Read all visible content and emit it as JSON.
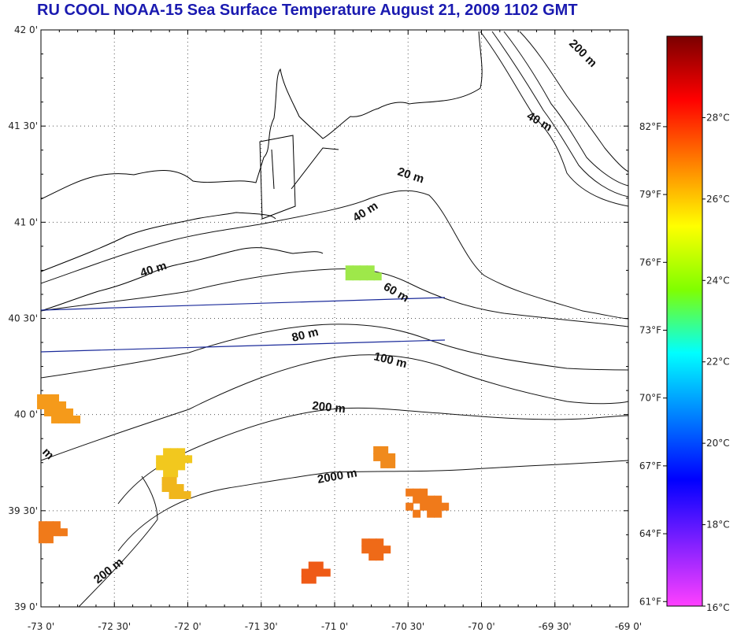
{
  "title": "RU COOL  NOAA-15 Sea Surface Temperature August 21, 2009 1102 GMT",
  "map": {
    "lat_range": [
      39.0,
      42.0
    ],
    "lon_range": [
      -73.0,
      -69.0
    ],
    "lat_ticks": [
      "39 0'",
      "39 30'",
      "40 0'",
      "40 30'",
      "41 0'",
      "41 30'",
      "42 0'"
    ],
    "lon_ticks": [
      "-73 0'",
      "-72 30'",
      "-72 0'",
      "-71 30'",
      "-71 0'",
      "-70 30'",
      "-70 0'",
      "-69 30'",
      "-69 0'"
    ],
    "grid": "dotted",
    "depth_contour_labels": [
      "200 m",
      "40 m",
      "20 m",
      "40 m",
      "40 m",
      "60 m",
      "80 m",
      "100 m",
      "200 m",
      "2000 m",
      "200 m",
      "m"
    ],
    "land_color": "#ffffff",
    "coastline_color": "#000000",
    "transect_color": "#1a2a9a"
  },
  "colorbar": {
    "range_c": [
      16,
      30
    ],
    "celsius_labels": [
      "28°C",
      "26°C",
      "24°C",
      "22°C",
      "20°C",
      "18°C",
      "16°C"
    ],
    "fahrenheit_labels": [
      "82°F",
      "79°F",
      "76°F",
      "73°F",
      "70°F",
      "67°F",
      "64°F",
      "61°F"
    ],
    "colors": [
      "#7a0000",
      "#ff0000",
      "#ff8000",
      "#ffff00",
      "#80ff00",
      "#00ffff",
      "#0080ff",
      "#0000ff",
      "#8020ff",
      "#ff40ff"
    ]
  },
  "sst_patches": [
    {
      "color": "#f59a1a",
      "lat": 40.05,
      "lon": -72.93
    },
    {
      "color": "#f2c81e",
      "lat": 39.77,
      "lon": -72.12
    },
    {
      "color": "#f0b61c",
      "lat": 39.62,
      "lon": -72.08
    },
    {
      "color": "#f07a1a",
      "lat": 39.56,
      "lon": -70.42
    },
    {
      "color": "#f08a1c",
      "lat": 39.78,
      "lon": -70.64
    },
    {
      "color": "#ef6a18",
      "lat": 39.3,
      "lon": -70.72
    },
    {
      "color": "#ef5a16",
      "lat": 39.18,
      "lon": -71.13
    },
    {
      "color": "#f07a1a",
      "lat": 39.39,
      "lon": -72.92
    },
    {
      "color": "#9ee84a",
      "lat": 40.72,
      "lon": -70.83
    }
  ]
}
